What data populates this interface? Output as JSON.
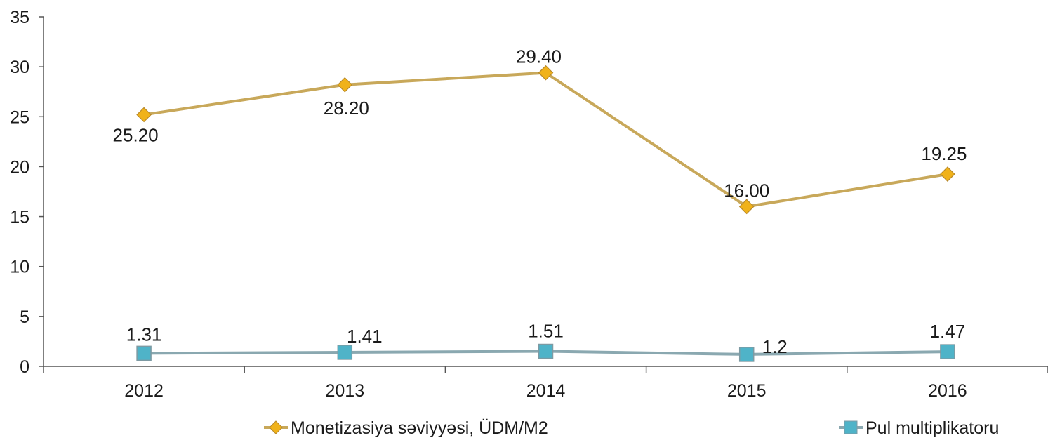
{
  "chart_data": {
    "type": "line",
    "title": "",
    "xlabel": "",
    "ylabel": "",
    "categories": [
      "2012",
      "2013",
      "2014",
      "2015",
      "2016"
    ],
    "ylim": [
      0,
      35
    ],
    "yticks": [
      "0",
      "5",
      "10",
      "15",
      "20",
      "25",
      "30",
      "35"
    ],
    "grid": false,
    "legend_position": "bottom",
    "series": [
      {
        "name": "Monetizasiya səviyyəsi, ÜDM/M2",
        "values": [
          25.2,
          28.2,
          29.4,
          16.0,
          19.25
        ],
        "labels": [
          "25.20",
          "28.20",
          "29.40",
          "16.00",
          "19.25"
        ],
        "color": "#c8a85a",
        "marker_color": "#f0b21a",
        "marker": "diamond"
      },
      {
        "name": "Pul multiplikatoru",
        "values": [
          1.31,
          1.41,
          1.51,
          1.2,
          1.47
        ],
        "labels": [
          "1.31",
          "1.41",
          "1.51",
          "1.2",
          "1.47"
        ],
        "color": "#8aa8b0",
        "marker_color": "#4fb3c8",
        "marker": "square"
      }
    ]
  }
}
